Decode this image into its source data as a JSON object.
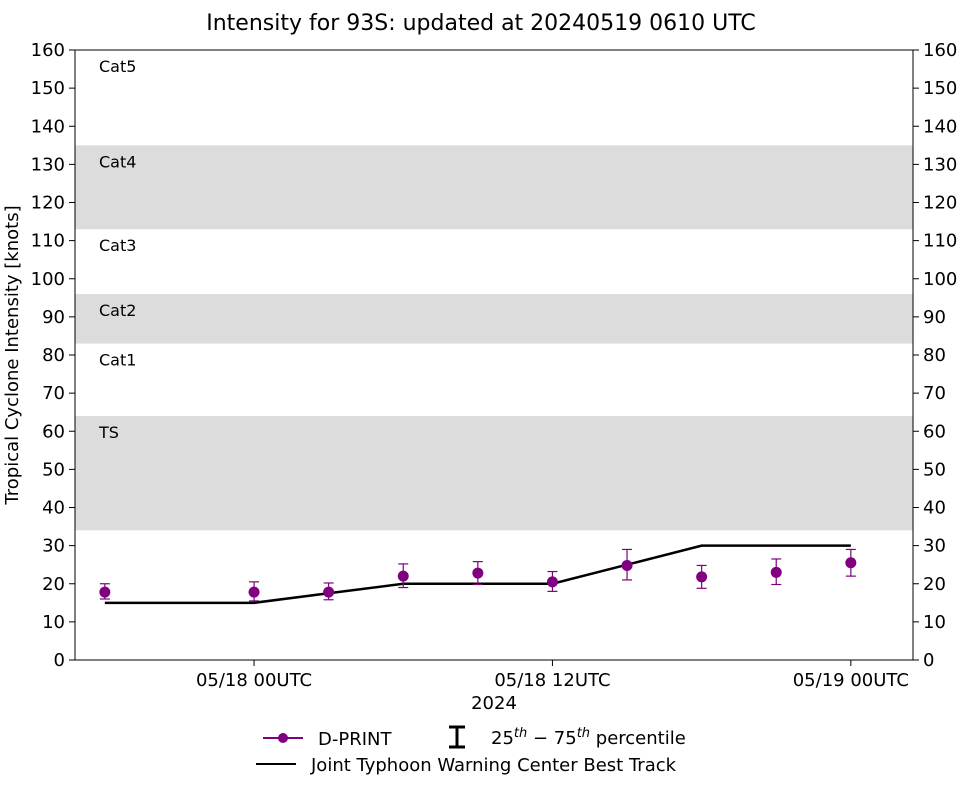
{
  "chart_data": {
    "type": "line",
    "title": "Intensity for 93S: updated at 20240519 0610 UTC",
    "xlabel": "2024",
    "ylabel": "Tropical Cyclone Intensity [knots]",
    "ylim": [
      0,
      160
    ],
    "y_ticks": [
      0,
      10,
      20,
      30,
      40,
      50,
      60,
      70,
      80,
      90,
      100,
      110,
      120,
      130,
      140,
      150,
      160
    ],
    "xlim_hours": [
      -7.2,
      26.5
    ],
    "x_ticks": [
      {
        "hour": 0,
        "label": "05/18 00UTC"
      },
      {
        "hour": 12,
        "label": "05/18 12UTC"
      },
      {
        "hour": 24,
        "label": "05/19 00UTC"
      }
    ],
    "bands": [
      {
        "from": 34,
        "to": 64,
        "label": "TS",
        "shaded": true
      },
      {
        "from": 64,
        "to": 83,
        "label": "Cat1",
        "shaded": false
      },
      {
        "from": 83,
        "to": 96,
        "label": "Cat2",
        "shaded": true
      },
      {
        "from": 96,
        "to": 113,
        "label": "Cat3",
        "shaded": false
      },
      {
        "from": 113,
        "to": 135,
        "label": "Cat4",
        "shaded": true
      },
      {
        "from": 135,
        "to": 160,
        "label": "Cat5",
        "shaded": false
      }
    ],
    "band_color": "#dcdcdc",
    "series": [
      {
        "name": "D-PRINT",
        "color": "#800080",
        "marker": "circle",
        "points": [
          {
            "hour": -6,
            "value": 17.8,
            "p25": 16.0,
            "p75": 20.0
          },
          {
            "hour": 0,
            "value": 17.8,
            "p25": 15.5,
            "p75": 20.5
          },
          {
            "hour": 3,
            "value": 17.8,
            "p25": 15.8,
            "p75": 20.2
          },
          {
            "hour": 6,
            "value": 22.0,
            "p25": 19.0,
            "p75": 25.2
          },
          {
            "hour": 9,
            "value": 22.8,
            "p25": 19.8,
            "p75": 25.8
          },
          {
            "hour": 12,
            "value": 20.5,
            "p25": 18.0,
            "p75": 23.2
          },
          {
            "hour": 15,
            "value": 24.8,
            "p25": 21.0,
            "p75": 29.0
          },
          {
            "hour": 18,
            "value": 21.8,
            "p25": 18.8,
            "p75": 24.8
          },
          {
            "hour": 21,
            "value": 23.0,
            "p25": 19.8,
            "p75": 26.5
          },
          {
            "hour": 24,
            "value": 25.5,
            "p25": 22.0,
            "p75": 29.0
          }
        ]
      },
      {
        "name": "Joint Typhoon Warning Center Best Track",
        "color": "#000000",
        "points": [
          {
            "hour": -6,
            "value": 15
          },
          {
            "hour": 0,
            "value": 15
          },
          {
            "hour": 3,
            "value": 17.5
          },
          {
            "hour": 6,
            "value": 20
          },
          {
            "hour": 12,
            "value": 20
          },
          {
            "hour": 15,
            "value": 25
          },
          {
            "hour": 18,
            "value": 30
          },
          {
            "hour": 24,
            "value": 30
          }
        ]
      }
    ],
    "legend": {
      "position": "bottom-center",
      "percentile_label": "percentile"
    }
  }
}
